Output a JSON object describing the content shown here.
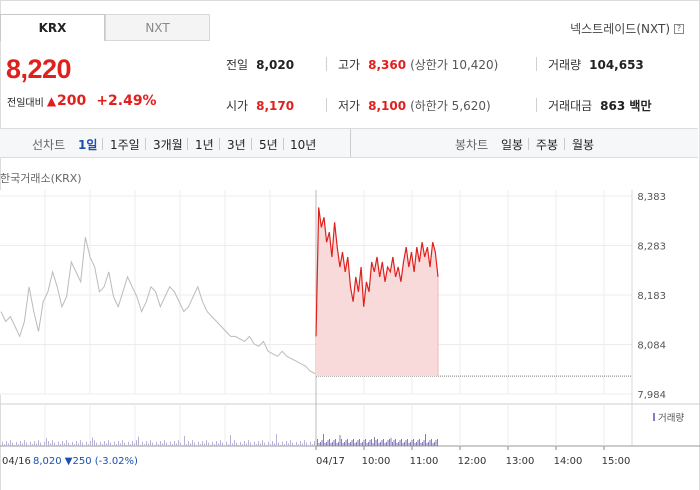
{
  "tabs": {
    "krx": "KRX",
    "nxt": "NXT"
  },
  "nxt_link": "넥스트레이드(NXT)",
  "quote": {
    "price": "8,220",
    "change_label": "전일대비",
    "change_value": "200",
    "change_pct": "+2.49%"
  },
  "stats": {
    "prev_close": {
      "label": "전일",
      "value": "8,020"
    },
    "high": {
      "label": "고가",
      "value": "8,360",
      "sub": "(상한가 10,420)"
    },
    "volume": {
      "label": "거래량",
      "value": "104,653"
    },
    "open": {
      "label": "시가",
      "value": "8,170"
    },
    "low": {
      "label": "저가",
      "value": "8,100",
      "sub": "(하한가 5,620)"
    },
    "amount": {
      "label": "거래대금",
      "value": "863 백만"
    }
  },
  "toolbar": {
    "line_chart": "선차트",
    "periods": [
      "1일",
      "1주일",
      "3개월",
      "1년",
      "3년",
      "5년",
      "10년"
    ],
    "active_period": "1일",
    "candle_chart": "봉차트",
    "candle_periods": [
      "일봉",
      "주봉",
      "월봉"
    ]
  },
  "exchange_label": "한국거래소(KRX)",
  "colors": {
    "up": "#e0201d",
    "down": "#1a4fb0",
    "prev_line": "#bbbbbb",
    "today_fill": "#f9dada",
    "volume": "#8a7bbf"
  },
  "chart_data": {
    "type": "line",
    "y_ticks": [
      "8,383",
      "8,283",
      "8,183",
      "8,084",
      "7,984"
    ],
    "x_ticks": [
      "04/16",
      "04/17",
      "10:00",
      "11:00",
      "12:00",
      "13:00",
      "14:00",
      "15:00"
    ],
    "ylim": [
      7984,
      8383
    ],
    "previous_day_summary": {
      "date": "04/16",
      "close": "8,020",
      "change": "250",
      "change_pct": "(-3.02%)"
    },
    "volume_legend": "거래량",
    "previous_close_level": 8020,
    "series": [
      {
        "values": [
          8150,
          8130,
          8140,
          8120,
          8100,
          8130,
          8200,
          8150,
          8110,
          8170,
          8190,
          8230,
          8200,
          8160,
          8180,
          8250,
          8230,
          8210,
          8300,
          8260,
          8240,
          8190,
          8200,
          8230,
          8180,
          8160,
          8190,
          8220,
          8200,
          8180,
          8150,
          8170,
          8200,
          8190,
          8160,
          8180,
          8200,
          8190,
          8170,
          8150,
          8160,
          8180,
          8200,
          8170,
          8150,
          8140,
          8130,
          8120,
          8110,
          8100,
          8100,
          8095,
          8090,
          8100,
          8085,
          8080,
          8090,
          8070,
          8065,
          8060,
          8070,
          8060,
          8055,
          8050,
          8045,
          8040,
          8030,
          8025
        ]
      },
      {
        "values": [
          8100,
          8360,
          8320,
          8340,
          8290,
          8310,
          8260,
          8330,
          8280,
          8240,
          8270,
          8230,
          8260,
          8200,
          8170,
          8220,
          8190,
          8240,
          8160,
          8210,
          8190,
          8250,
          8230,
          8260,
          8220,
          8250,
          8210,
          8240,
          8230,
          8260,
          8220,
          8240,
          8210,
          8250,
          8280,
          8240,
          8270,
          8230,
          8280,
          8250,
          8290,
          8260,
          8280,
          8240,
          8290,
          8270,
          8220
        ]
      }
    ]
  }
}
